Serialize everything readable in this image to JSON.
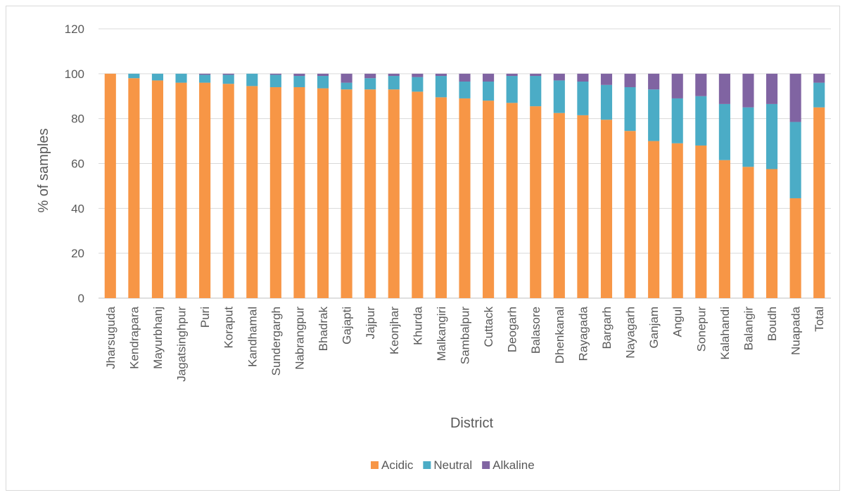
{
  "chart_data": {
    "type": "bar",
    "stacked": true,
    "title": "",
    "xlabel": "District",
    "ylabel": "% of samples",
    "ylim": [
      0,
      120
    ],
    "yticks": [
      0,
      20,
      40,
      60,
      80,
      100,
      120
    ],
    "grid": true,
    "legend_position": "bottom",
    "categories": [
      "Jharsuguda",
      "Kendrapara",
      "Mayurbhanj",
      "Jagatsinghpur",
      "Puri",
      "Koraput",
      "Kandhamal",
      "Sundergargh",
      "Nabrangpur",
      "Bhadrak",
      "Gajapti",
      "Jajpur",
      "Keonjhar",
      "Khurda",
      "Malkangiri",
      "Sambalpur",
      "Cuttack",
      "Deogarh",
      "Balasore",
      "Dhenkanal",
      "Rayagada",
      "Bargarh",
      "Nayagarh",
      "Ganjam",
      "Angul",
      "Sonepur",
      "Kalahandi",
      "Balangir",
      "Boudh",
      "Nuapada",
      "Total"
    ],
    "series": [
      {
        "name": "Acidic",
        "color": "#f79646",
        "values": [
          100,
          98,
          97,
          96,
          96,
          95.5,
          94.5,
          94,
          94,
          93.5,
          93,
          93,
          93,
          92,
          89.5,
          89,
          88,
          87,
          85.5,
          82.5,
          81.5,
          79.5,
          74.5,
          70,
          69,
          68,
          61.5,
          58.5,
          57.5,
          44.5,
          85
        ]
      },
      {
        "name": "Neutral",
        "color": "#4bacc6",
        "values": [
          0,
          2,
          3,
          4,
          3.5,
          4,
          5.5,
          5.5,
          5,
          5.5,
          3,
          5,
          6,
          6.5,
          9.5,
          7.5,
          8.5,
          12,
          13.5,
          14.5,
          15,
          15.5,
          19.5,
          23,
          20,
          22,
          25,
          26.5,
          29,
          34,
          11
        ]
      },
      {
        "name": "Alkaline",
        "color": "#8064a2",
        "values": [
          0,
          0,
          0,
          0,
          0.5,
          0.5,
          0,
          0.5,
          1,
          1,
          4,
          2,
          1,
          1.5,
          1,
          3.5,
          3.5,
          1,
          1,
          3,
          3.5,
          5,
          6,
          7,
          11,
          10,
          13.5,
          15,
          13.5,
          21.5,
          4
        ]
      }
    ]
  }
}
